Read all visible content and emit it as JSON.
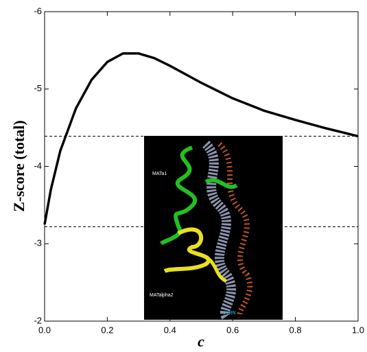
{
  "chart_data": {
    "type": "line",
    "x_label": "c",
    "y_label": "Z-score (total)",
    "x": [
      0,
      0.02,
      0.05,
      0.1,
      0.15,
      0.2,
      0.25,
      0.3,
      0.35,
      0.4,
      0.5,
      0.6,
      0.7,
      0.8,
      0.9,
      1.0
    ],
    "series": [
      {
        "color": "#000000",
        "values": [
          -3.25,
          -3.7,
          -4.2,
          -4.75,
          -5.12,
          -5.35,
          -5.46,
          -5.46,
          -5.4,
          -5.3,
          -5.08,
          -4.88,
          -4.72,
          -4.6,
          -4.49,
          -4.39
        ]
      }
    ],
    "reference_lines": [
      -4.39,
      -3.22
    ],
    "xlim": [
      0,
      1
    ],
    "ylim": [
      -2,
      -6
    ],
    "xticks": [
      {
        "value": 0,
        "label": "0.0"
      },
      0.2,
      0.4,
      0.6,
      0.8,
      {
        "value": 1,
        "label": "1.0"
      }
    ],
    "yticks": [
      -2,
      -3,
      -4,
      -5,
      -6
    ],
    "inset_labels": [
      "MATa1",
      "MATalpha2",
      "1YRN"
    ]
  }
}
